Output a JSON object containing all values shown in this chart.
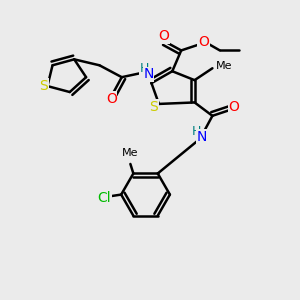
{
  "background_color": "#ebebeb",
  "atom_colors": {
    "S": "#cccc00",
    "N": "#0000ff",
    "O": "#ff0000",
    "C": "#000000",
    "H": "#008080",
    "Cl": "#00bb00"
  },
  "bond_color": "#000000",
  "bond_width": 1.8,
  "font_size": 9
}
